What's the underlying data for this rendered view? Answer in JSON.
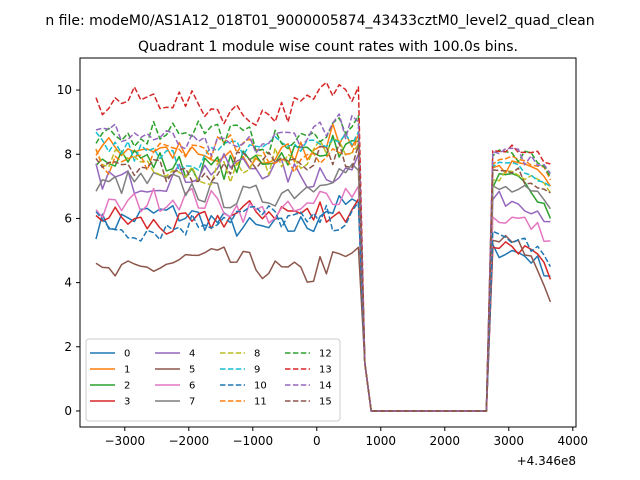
{
  "figure": {
    "suptitle": "n file: modeM0/AS1A12_018T01_9000005874_43433cztM0_level2_quad_clean",
    "title": "Quadrant 1 module wise count rates with 100.0s bins.",
    "x_offset_label": "+4.346e8"
  },
  "chart_data": {
    "type": "line",
    "title": "Quadrant 1 module wise count rates with 100.0s bins.",
    "xlabel": "",
    "ylabel": "",
    "x_offset": 434600000,
    "xlim": [
      -3700,
      4050
    ],
    "ylim": [
      -0.5,
      11.0
    ],
    "xticks": [
      -3000,
      -2000,
      -1000,
      0,
      1000,
      2000,
      3000,
      4000
    ],
    "xtick_labels": [
      "−3000",
      "−2000",
      "−1000",
      "0",
      "1000",
      "2000",
      "3000",
      "4000"
    ],
    "yticks": [
      0,
      2,
      4,
      6,
      8,
      10
    ],
    "ytick_labels": [
      "0",
      "2",
      "4",
      "6",
      "8",
      "10"
    ],
    "grid": false,
    "legend": {
      "placement": "lower-left",
      "columns": 4
    },
    "series": [
      {
        "name": "0",
        "color": "#1f77b4",
        "dash": "solid",
        "level": 5.9,
        "post": 5.0,
        "end": 4.2
      },
      {
        "name": "1",
        "color": "#ff7f0e",
        "dash": "solid",
        "level": 8.0,
        "post": 7.6,
        "end": 7.0
      },
      {
        "name": "2",
        "color": "#2ca02c",
        "dash": "solid",
        "level": 7.8,
        "post": 7.2,
        "end": 6.0
      },
      {
        "name": "3",
        "color": "#d62728",
        "dash": "solid",
        "level": 6.0,
        "post": 5.2,
        "end": 4.1
      },
      {
        "name": "4",
        "color": "#9467bd",
        "dash": "solid",
        "level": 7.4,
        "post": 6.6,
        "end": 5.9
      },
      {
        "name": "5",
        "color": "#8c564b",
        "dash": "solid",
        "level": 4.5,
        "post": 5.3,
        "end": 3.4
      },
      {
        "name": "6",
        "color": "#e377c2",
        "dash": "solid",
        "level": 6.4,
        "post": 6.0,
        "end": 5.3
      },
      {
        "name": "7",
        "color": "#7f7f7f",
        "dash": "solid",
        "level": 6.9,
        "post": 6.9,
        "end": 6.3
      },
      {
        "name": "8",
        "color": "#bcbd22",
        "dash": "dashed",
        "level": 7.7,
        "post": 7.3,
        "end": 6.8
      },
      {
        "name": "9",
        "color": "#17becf",
        "dash": "dashed",
        "level": 8.1,
        "post": 7.7,
        "end": 7.0
      },
      {
        "name": "10",
        "color": "#1f77b4",
        "dash": "dashed",
        "level": 5.9,
        "post": 5.4,
        "end": 4.5
      },
      {
        "name": "11",
        "color": "#ff7f0e",
        "dash": "dashed",
        "level": 8.0,
        "post": 7.9,
        "end": 7.2
      },
      {
        "name": "12",
        "color": "#2ca02c",
        "dash": "dashed",
        "level": 8.6,
        "post": 8.0,
        "end": 7.3
      },
      {
        "name": "13",
        "color": "#d62728",
        "dash": "dashed",
        "level": 9.5,
        "post": 8.3,
        "end": 7.7
      },
      {
        "name": "14",
        "color": "#9467bd",
        "dash": "dashed",
        "level": 8.4,
        "post": 8.0,
        "end": 7.4
      },
      {
        "name": "15",
        "color": "#8c564b",
        "dash": "dashed",
        "level": 7.7,
        "post": 7.4,
        "end": 6.8
      }
    ],
    "time_grid": {
      "start": -3450,
      "step": 100,
      "on_end": 650,
      "gap_start": 750,
      "gap_end": 2650,
      "resume_start": 2750,
      "stop": 3650
    }
  }
}
